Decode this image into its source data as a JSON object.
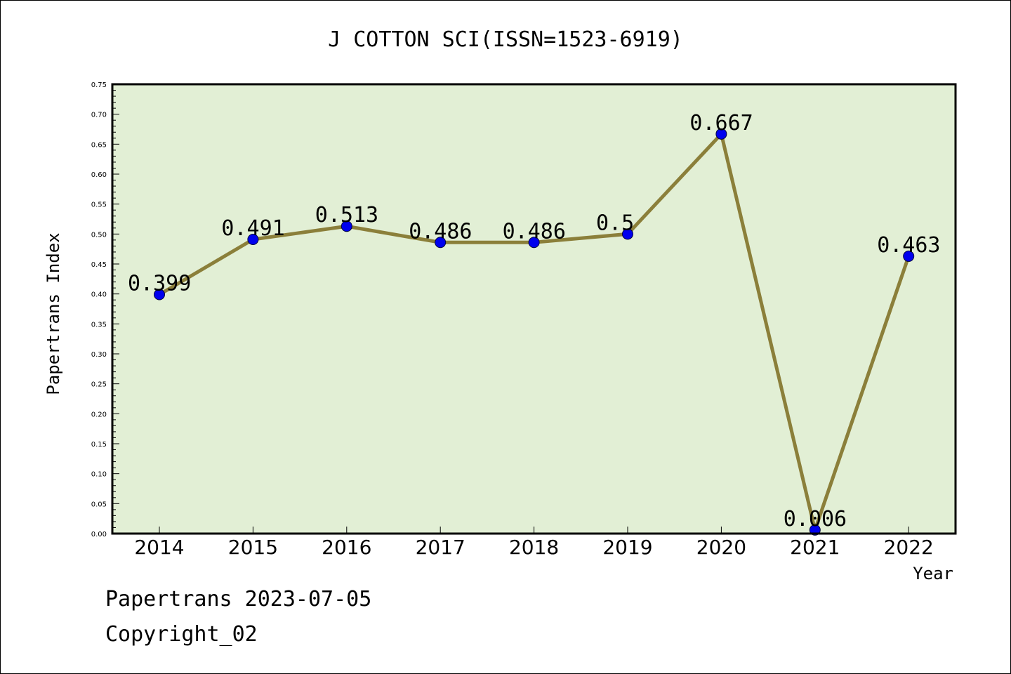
{
  "chart_data": {
    "type": "line",
    "title": "J COTTON SCI(ISSN=1523-6919)",
    "xlabel": "Year",
    "ylabel": "Papertrans Index",
    "categories": [
      "2014",
      "2015",
      "2016",
      "2017",
      "2018",
      "2019",
      "2020",
      "2021",
      "2022"
    ],
    "values": [
      0.399,
      0.491,
      0.513,
      0.486,
      0.486,
      0.5,
      0.667,
      0.006,
      0.463
    ],
    "data_labels": [
      "0.399",
      "0.491",
      "0.513",
      "0.486",
      "0.486",
      "0.5",
      "0.667",
      "0.006",
      "0.463"
    ],
    "ylim": [
      0,
      0.75
    ],
    "yticks": [
      "0.00",
      "0.05",
      "0.10",
      "0.15",
      "0.20",
      "0.25",
      "0.30",
      "0.35",
      "0.40",
      "0.45",
      "0.50",
      "0.55",
      "0.60",
      "0.65",
      "0.70",
      "0.75"
    ],
    "grid": false,
    "colors": {
      "plot_background": "#e2efd5",
      "line": "#8b7f3a",
      "marker": "#0000ee"
    }
  },
  "footer": {
    "line1": "Papertrans 2023-07-05",
    "line2": "Copyright_02"
  }
}
